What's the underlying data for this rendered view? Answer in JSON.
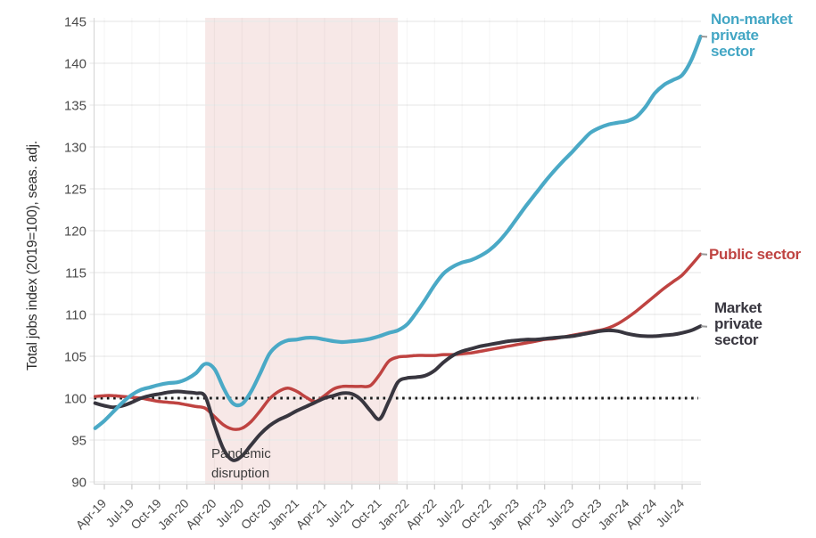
{
  "chart_data": {
    "type": "line",
    "title": "",
    "ylabel": "Total jobs index (2019=100), seas. adj.",
    "ylim": [
      90,
      145
    ],
    "ytick_labels": [
      "145",
      "140",
      "135",
      "130",
      "125",
      "120",
      "115",
      "110",
      "105",
      "100",
      "95",
      "90"
    ],
    "x_months": [
      "Mar-19",
      "Apr-19",
      "May-19",
      "Jun-19",
      "Jul-19",
      "Aug-19",
      "Sep-19",
      "Oct-19",
      "Nov-19",
      "Dec-19",
      "Jan-20",
      "Feb-20",
      "Mar-20",
      "Apr-20",
      "May-20",
      "Jun-20",
      "Jul-20",
      "Aug-20",
      "Sep-20",
      "Oct-20",
      "Nov-20",
      "Dec-20",
      "Jan-21",
      "Feb-21",
      "Mar-21",
      "Apr-21",
      "May-21",
      "Jun-21",
      "Jul-21",
      "Aug-21",
      "Sep-21",
      "Oct-21",
      "Nov-21",
      "Dec-21",
      "Jan-22",
      "Feb-22",
      "Mar-22",
      "Apr-22",
      "May-22",
      "Jun-22",
      "Jul-22",
      "Aug-22",
      "Sep-22",
      "Oct-22",
      "Nov-22",
      "Dec-22",
      "Jan-23",
      "Feb-23",
      "Mar-23",
      "Apr-23",
      "May-23",
      "Jun-23",
      "Jul-23",
      "Aug-23",
      "Sep-23",
      "Oct-23",
      "Nov-23",
      "Dec-23",
      "Jan-24",
      "Feb-24",
      "Mar-24",
      "Apr-24",
      "May-24",
      "Jun-24",
      "Jul-24",
      "Aug-24",
      "Sep-24"
    ],
    "x_tick_labels": [
      "Apr-19",
      "Jul-19",
      "Oct-19",
      "Jan-20",
      "Apr-20",
      "Jul-20",
      "Oct-20",
      "Jan-21",
      "Apr-21",
      "Jul-21",
      "Oct-21",
      "Jan-22",
      "Apr-22",
      "Jul-22",
      "Oct-22",
      "Jan-23",
      "Apr-23",
      "Jul-23",
      "Oct-23",
      "Jan-24",
      "Apr-24",
      "Jul-24"
    ],
    "x_tick_first_index": 1,
    "x_tick_every": 3,
    "reference_line": {
      "value": 100,
      "style": "dotted",
      "color": "#1a1a1a"
    },
    "band": {
      "label": "Pandemic disruption",
      "start_month": "Mar-20",
      "end_month": "Dec-21",
      "start_index": 12,
      "end_index": 33,
      "color": "#f7e8e7"
    },
    "annotation": {
      "text_lines": [
        "Pandemic",
        "disruption"
      ]
    },
    "grid": "horizontal-and-faint-vertical",
    "legend_position": "right-of-lines",
    "series": [
      {
        "name": "Non-market private sector",
        "label_lines": [
          "Non-market",
          "private",
          "sector"
        ],
        "color": "#4aa9c6",
        "values": [
          96.4,
          97.3,
          98.4,
          99.5,
          100.4,
          101.0,
          101.3,
          101.6,
          101.8,
          101.9,
          102.3,
          103.0,
          104.1,
          103.5,
          101.2,
          99.4,
          99.3,
          100.8,
          103.0,
          105.3,
          106.4,
          106.9,
          107.0,
          107.2,
          107.2,
          107.0,
          106.8,
          106.7,
          106.8,
          106.9,
          107.1,
          107.4,
          107.8,
          108.1,
          108.8,
          110.2,
          111.8,
          113.5,
          114.9,
          115.7,
          116.2,
          116.5,
          117.0,
          117.7,
          118.7,
          120.0,
          121.5,
          123.0,
          124.4,
          125.8,
          127.1,
          128.3,
          129.4,
          130.6,
          131.7,
          132.3,
          132.7,
          132.9,
          133.1,
          133.6,
          134.8,
          136.4,
          137.4,
          138.0,
          138.6,
          140.4,
          143.2
        ]
      },
      {
        "name": "Public sector",
        "label_lines": [
          "Public sector"
        ],
        "color": "#bf4341",
        "values": [
          100.2,
          100.3,
          100.3,
          100.2,
          100.1,
          100.0,
          99.8,
          99.6,
          99.5,
          99.4,
          99.2,
          99.0,
          98.8,
          97.8,
          96.8,
          96.3,
          96.4,
          97.2,
          98.5,
          99.9,
          100.8,
          101.2,
          100.8,
          100.1,
          99.6,
          100.3,
          101.1,
          101.4,
          101.4,
          101.4,
          101.5,
          102.8,
          104.4,
          104.9,
          105.0,
          105.1,
          105.1,
          105.1,
          105.2,
          105.2,
          105.3,
          105.4,
          105.6,
          105.8,
          106.0,
          106.2,
          106.4,
          106.6,
          106.8,
          107.0,
          107.1,
          107.3,
          107.5,
          107.7,
          107.9,
          108.1,
          108.4,
          108.9,
          109.6,
          110.4,
          111.3,
          112.2,
          113.1,
          113.9,
          114.7,
          115.9,
          117.2
        ]
      },
      {
        "name": "Market private sector",
        "label_lines": [
          "Market",
          "private",
          "sector"
        ],
        "color": "#38363f",
        "values": [
          99.4,
          99.1,
          98.9,
          99.1,
          99.5,
          100.0,
          100.3,
          100.5,
          100.7,
          100.8,
          100.7,
          100.6,
          100.2,
          96.8,
          93.9,
          92.6,
          93.1,
          94.4,
          95.7,
          96.7,
          97.4,
          97.9,
          98.5,
          99.0,
          99.5,
          100.0,
          100.3,
          100.6,
          100.5,
          99.8,
          98.5,
          97.5,
          99.6,
          101.9,
          102.4,
          102.5,
          102.7,
          103.3,
          104.3,
          105.1,
          105.6,
          105.9,
          106.2,
          106.4,
          106.6,
          106.8,
          106.9,
          107.0,
          107.0,
          107.1,
          107.2,
          107.3,
          107.4,
          107.6,
          107.8,
          108.0,
          108.1,
          108.0,
          107.7,
          107.5,
          107.4,
          107.4,
          107.5,
          107.6,
          107.8,
          108.1,
          108.6
        ]
      }
    ]
  }
}
